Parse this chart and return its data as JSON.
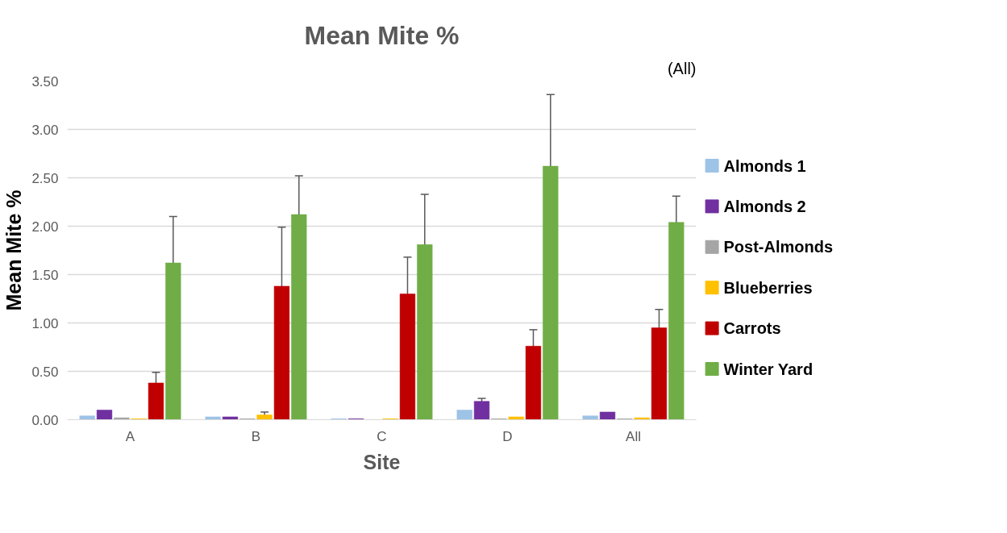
{
  "chart_data": {
    "type": "bar",
    "title": "Mean Mite %",
    "xlabel": "Site",
    "ylabel": "Mean Mite %",
    "annotations": [
      "(All)"
    ],
    "categories": [
      "A",
      "B",
      "C",
      "D",
      "All"
    ],
    "series": [
      {
        "name": "Almonds 1",
        "color": "#9dc3e6",
        "values": [
          0.04,
          0.03,
          0.01,
          0.1,
          0.04
        ],
        "errors": [
          null,
          null,
          null,
          null,
          null
        ]
      },
      {
        "name": "Almonds 2",
        "color": "#7030a0",
        "values": [
          0.1,
          0.03,
          0.01,
          0.19,
          0.08
        ],
        "errors": [
          null,
          null,
          null,
          0.03,
          null
        ]
      },
      {
        "name": "Post-Almonds",
        "color": "#a5a5a5",
        "values": [
          0.02,
          0.01,
          0.0,
          0.01,
          0.01
        ],
        "errors": [
          null,
          null,
          null,
          null,
          null
        ]
      },
      {
        "name": "Blueberries",
        "color": "#ffc000",
        "values": [
          0.01,
          0.05,
          0.01,
          0.03,
          0.02
        ],
        "errors": [
          null,
          0.03,
          null,
          null,
          null
        ]
      },
      {
        "name": "Carrots",
        "color": "#c00000",
        "values": [
          0.38,
          1.38,
          1.3,
          0.76,
          0.95
        ],
        "errors": [
          0.11,
          0.61,
          0.38,
          0.17,
          0.19
        ]
      },
      {
        "name": "Winter Yard",
        "color": "#70ad47",
        "values": [
          1.62,
          2.12,
          1.81,
          2.62,
          2.04
        ],
        "errors": [
          0.48,
          0.4,
          0.52,
          0.74,
          0.27
        ]
      }
    ],
    "ylim": [
      0,
      3.5
    ],
    "yticks": [
      {
        "value": 0,
        "label": "0.00"
      },
      {
        "value": 0.5,
        "label": "0.50"
      },
      {
        "value": 1,
        "label": "1.00"
      },
      {
        "value": 1.5,
        "label": "1.50"
      },
      {
        "value": 2,
        "label": "2.00"
      },
      {
        "value": 2.5,
        "label": "2.50"
      },
      {
        "value": 3,
        "label": "3.00"
      },
      {
        "value": 3.5,
        "label": "3.50"
      }
    ],
    "grid": "y",
    "legend": "right"
  }
}
